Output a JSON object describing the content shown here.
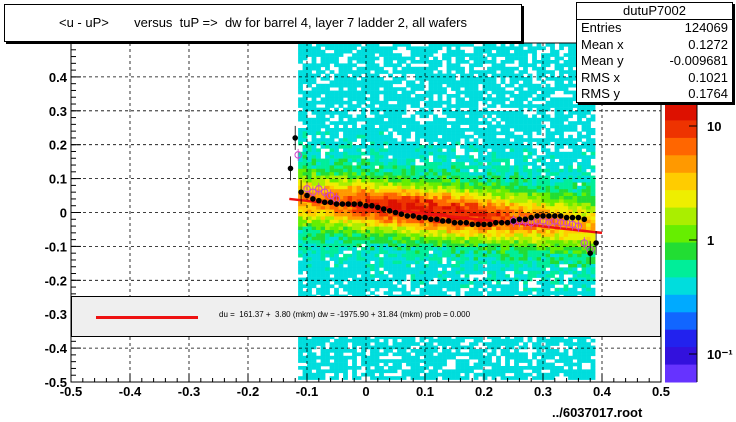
{
  "title": "<u - uP>       versus  tuP =>  dw for barrel 4, layer 7 ladder 2, all wafers",
  "stats": {
    "name": "dutuP7002",
    "rows": [
      {
        "label": "Entries",
        "value": "124069"
      },
      {
        "label": "Mean x",
        "value": "0.1272"
      },
      {
        "label": "Mean y",
        "value": "-0.009681"
      },
      {
        "label": "RMS x",
        "value": "0.1021"
      },
      {
        "label": "RMS y",
        "value": "0.1764"
      }
    ]
  },
  "fit_legend": {
    "text": "du =  161.37 +  3.80 (mkm) dw = -1975.90 + 31.84 (mkm) prob = 0.000",
    "line_color": "#ee1111"
  },
  "footer": "../6037017.root",
  "chart_data": {
    "type": "heatmap",
    "xlim": [
      -0.5,
      0.5
    ],
    "ylim": [
      -0.5,
      0.5
    ],
    "x_ticks": [
      "-0.5",
      "-0.4",
      "-0.3",
      "-0.2",
      "-0.1",
      "0",
      "0.1",
      "0.2",
      "0.3",
      "0.4",
      "0.5"
    ],
    "y_ticks": [
      "-0.5",
      "-0.4",
      "-0.3",
      "-0.2",
      "-0.1",
      "0",
      "0.1",
      "0.2",
      "0.3",
      "0.4"
    ],
    "grid": true,
    "z_scale": "log",
    "z_ticks": [
      "10",
      "1",
      "10⁻¹"
    ],
    "occupied_x_range": [
      -0.115,
      0.395
    ],
    "profile_black": {
      "x": [
        -0.128,
        -0.12,
        -0.11,
        -0.1,
        -0.09,
        -0.08,
        -0.07,
        -0.06,
        -0.05,
        -0.04,
        -0.03,
        -0.02,
        -0.01,
        0.0,
        0.01,
        0.02,
        0.03,
        0.04,
        0.05,
        0.06,
        0.07,
        0.08,
        0.09,
        0.1,
        0.11,
        0.12,
        0.13,
        0.14,
        0.15,
        0.16,
        0.17,
        0.18,
        0.19,
        0.2,
        0.21,
        0.22,
        0.23,
        0.24,
        0.25,
        0.26,
        0.27,
        0.28,
        0.29,
        0.3,
        0.31,
        0.32,
        0.33,
        0.34,
        0.35,
        0.36,
        0.37,
        0.38,
        0.39
      ],
      "y": [
        0.13,
        0.22,
        0.06,
        0.05,
        0.04,
        0.035,
        0.03,
        0.03,
        0.025,
        0.025,
        0.025,
        0.025,
        0.025,
        0.02,
        0.02,
        0.015,
        0.01,
        0.005,
        0.0,
        -0.005,
        -0.01,
        -0.01,
        -0.015,
        -0.015,
        -0.02,
        -0.02,
        -0.025,
        -0.025,
        -0.03,
        -0.03,
        -0.03,
        -0.035,
        -0.035,
        -0.035,
        -0.035,
        -0.03,
        -0.03,
        -0.03,
        -0.025,
        -0.02,
        -0.02,
        -0.015,
        -0.01,
        -0.01,
        -0.01,
        -0.01,
        -0.01,
        -0.015,
        -0.015,
        -0.015,
        -0.02,
        -0.12,
        -0.09
      ]
    },
    "profile_magenta": {
      "x": [
        -0.115,
        -0.1,
        -0.09,
        -0.08,
        -0.07,
        -0.06,
        -0.05,
        0.25,
        0.26,
        0.27,
        0.28,
        0.29,
        0.3,
        0.31,
        0.32,
        0.33,
        0.34,
        0.35,
        0.36,
        0.37,
        0.38
      ],
      "y": [
        0.17,
        0.07,
        0.06,
        0.07,
        0.06,
        0.05,
        0.04,
        -0.025,
        -0.025,
        -0.025,
        -0.03,
        -0.025,
        -0.025,
        -0.03,
        -0.025,
        -0.03,
        -0.03,
        -0.035,
        -0.04,
        -0.09,
        -0.11
      ]
    },
    "fit_line": {
      "x": [
        -0.13,
        0.4
      ],
      "y": [
        0.04,
        -0.06
      ],
      "color": "#ee1111"
    }
  }
}
